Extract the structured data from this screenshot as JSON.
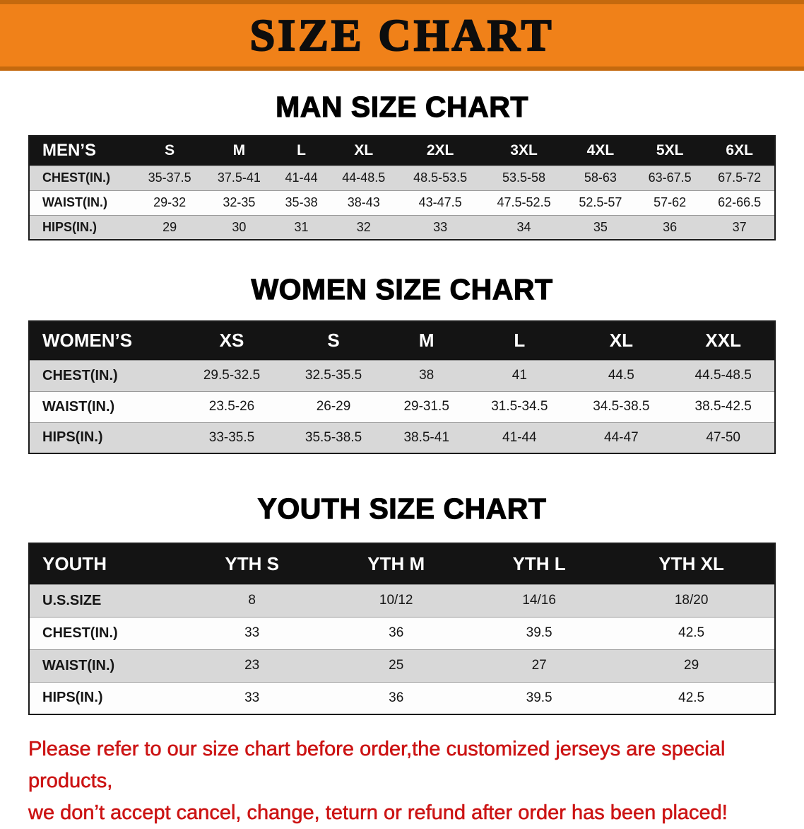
{
  "banner": {
    "title": "SIZE CHART"
  },
  "men": {
    "heading": "MAN SIZE CHART",
    "table": {
      "header": [
        "MEN’S",
        "S",
        "M",
        "L",
        "XL",
        "2XL",
        "3XL",
        "4XL",
        "5XL",
        "6XL"
      ],
      "rows": [
        [
          "CHEST(IN.)",
          "35-37.5",
          "37.5-41",
          "41-44",
          "44-48.5",
          "48.5-53.5",
          "53.5-58",
          "58-63",
          "63-67.5",
          "67.5-72"
        ],
        [
          "WAIST(IN.)",
          "29-32",
          "32-35",
          "35-38",
          "38-43",
          "43-47.5",
          "47.5-52.5",
          "52.5-57",
          "57-62",
          "62-66.5"
        ],
        [
          "HIPS(IN.)",
          "29",
          "30",
          "31",
          "32",
          "33",
          "34",
          "35",
          "36",
          "37"
        ]
      ]
    }
  },
  "women": {
    "heading": "WOMEN SIZE CHART",
    "table": {
      "header": [
        "WOMEN’S",
        "XS",
        "S",
        "M",
        "L",
        "XL",
        "XXL"
      ],
      "rows": [
        [
          "CHEST(IN.)",
          "29.5-32.5",
          "32.5-35.5",
          "38",
          "41",
          "44.5",
          "44.5-48.5"
        ],
        [
          "WAIST(IN.)",
          "23.5-26",
          "26-29",
          "29-31.5",
          "31.5-34.5",
          "34.5-38.5",
          "38.5-42.5"
        ],
        [
          "HIPS(IN.)",
          "33-35.5",
          "35.5-38.5",
          "38.5-41",
          "41-44",
          "44-47",
          "47-50"
        ]
      ]
    }
  },
  "youth": {
    "heading": "YOUTH SIZE CHART",
    "table": {
      "header": [
        "YOUTH",
        "YTH S",
        "YTH M",
        "YTH L",
        "YTH XL"
      ],
      "rows": [
        [
          "U.S.SIZE",
          "8",
          "10/12",
          "14/16",
          "18/20"
        ],
        [
          "CHEST(IN.)",
          "33",
          "36",
          "39.5",
          "42.5"
        ],
        [
          "WAIST(IN.)",
          "23",
          "25",
          "27",
          "29"
        ],
        [
          "HIPS(IN.)",
          "33",
          "36",
          "39.5",
          "42.5"
        ]
      ]
    }
  },
  "disclaimer": {
    "line1": "Please refer to our size chart before order,the customized jerseys are special products,",
    "line2": "we don’t accept cancel, change, teturn or refund after order has been placed!"
  },
  "colors": {
    "banner_orange": "#f08119",
    "banner_edge": "#c4690e",
    "header_black": "#141414",
    "row_gray": "#d8d8d8",
    "disclaimer_red": "#cc1414"
  }
}
